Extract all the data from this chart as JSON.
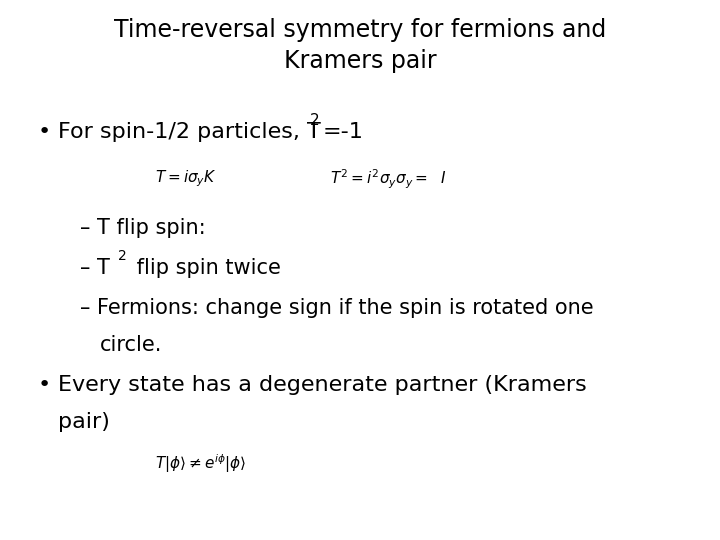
{
  "title_line1": "Time-reversal symmetry for fermions and",
  "title_line2": "Kramers pair",
  "title_fontsize": 17,
  "background_color": "#ffffff",
  "text_color": "#000000",
  "formula1_left": "$T = i\\sigma_y K$",
  "formula1_right": "$T^2 = i^2\\sigma_y\\sigma_y = \\ \\ I$",
  "formula2": "$T|\\phi\\rangle \\neq e^{i\\phi}|\\phi\\rangle$",
  "bullet_fontsize": 16,
  "sub_fontsize": 15,
  "formula_fontsize": 11
}
